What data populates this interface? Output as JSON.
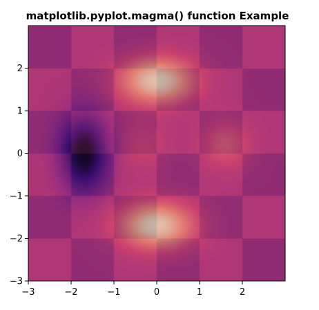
{
  "chart_data": {
    "type": "heatmap",
    "title": "matplotlib.pyplot.magma() function Example",
    "xlabel": "",
    "ylabel": "",
    "colormap": "magma",
    "xlim": [
      -3,
      3
    ],
    "ylim": [
      -3,
      3
    ],
    "grid": false,
    "legend": "none",
    "xticks": [
      -3,
      -2,
      -1,
      0,
      1,
      2
    ],
    "yticks": [
      -3,
      -2,
      -1,
      0,
      1,
      2
    ],
    "xtick_labels": [
      "−3",
      "−2",
      "−1",
      "0",
      "1",
      "2"
    ],
    "ytick_labels": [
      "−3",
      "−2",
      "−1",
      "0",
      "1",
      "2"
    ],
    "layers": [
      {
        "name": "checkerboard",
        "x_edges": [
          -3,
          -2,
          -1,
          0,
          1,
          2,
          3
        ],
        "y_edges": [
          -3,
          -2,
          -1,
          0,
          1,
          2,
          3
        ],
        "values": [
          [
            0,
            1,
            0,
            1,
            0,
            1
          ],
          [
            1,
            0,
            1,
            0,
            1,
            0
          ],
          [
            0,
            1,
            0,
            1,
            0,
            1
          ],
          [
            1,
            0,
            1,
            0,
            1,
            0
          ],
          [
            0,
            1,
            0,
            1,
            0,
            1
          ],
          [
            1,
            0,
            1,
            0,
            1,
            0
          ]
        ],
        "alpha": 1.0
      },
      {
        "name": "smooth-field",
        "blobs": [
          {
            "x": 0.0,
            "y": 1.7,
            "sx": 0.6,
            "sy": 0.38,
            "amp": 1.0
          },
          {
            "x": 0.0,
            "y": -1.7,
            "sx": 0.6,
            "sy": 0.38,
            "amp": 1.0
          },
          {
            "x": -1.7,
            "y": 0.0,
            "sx": 0.38,
            "sy": 0.6,
            "amp": -1.0
          },
          {
            "x": 1.6,
            "y": 0.2,
            "sx": 0.4,
            "sy": 0.4,
            "amp": 0.35
          },
          {
            "x": -0.3,
            "y": 0.2,
            "sx": 0.4,
            "sy": 0.4,
            "amp": 0.2
          }
        ],
        "vmin": -1.0,
        "vmax": 1.0,
        "alpha": 0.7
      }
    ],
    "colors": {
      "background": "#ffffff",
      "axes": "#000000",
      "magma_stops": [
        "#000004",
        "#3b0f70",
        "#8c2981",
        "#de4968",
        "#fe9f6d",
        "#fcfdbf"
      ]
    }
  }
}
